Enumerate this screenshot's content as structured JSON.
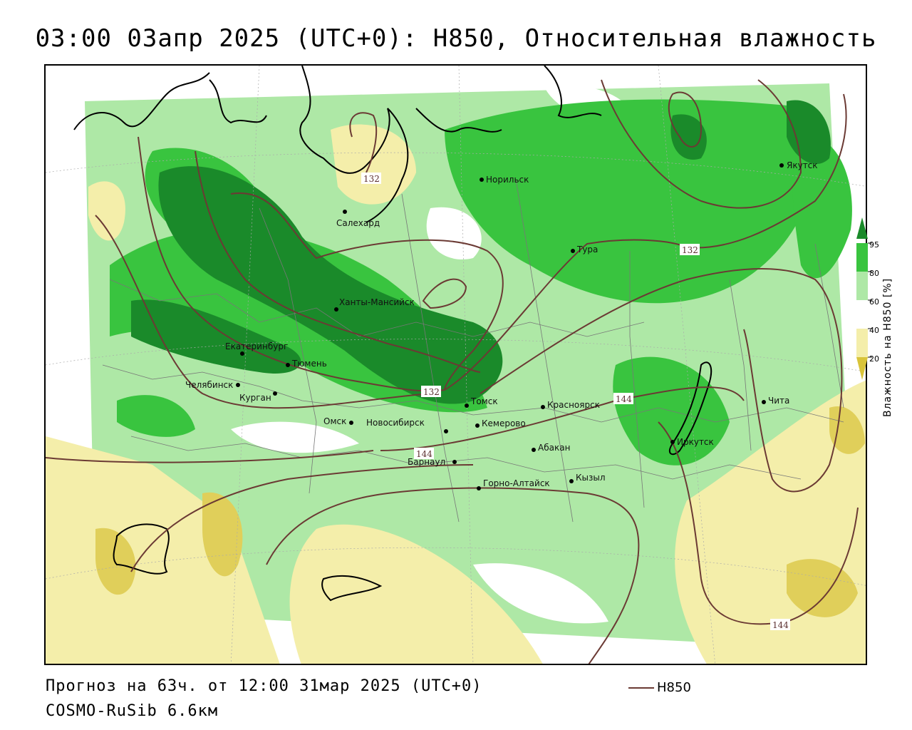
{
  "title": "03:00 03апр 2025 (UTC+0): H850, Относительная влажность",
  "footer": {
    "forecast": "Прогноз на 63ч. от 12:00 31мар 2025 (UTC+0)",
    "model": "COSMO-RuSib 6.6км",
    "legend_label": "H850"
  },
  "colorbar": {
    "title": "Влажность на H850 [%]",
    "ticks": [
      "95",
      "80",
      "60",
      "40",
      "20"
    ],
    "colors": {
      "c95": "#1a8a2a",
      "c80": "#39c43f",
      "c60": "#aee8a6",
      "c40": "#ffffff",
      "c20": "#f4eeaa",
      "c0": "#d9c43a"
    }
  },
  "contour_labels": [
    "132",
    "132",
    "132",
    "144",
    "144",
    "144"
  ],
  "cities": [
    {
      "name": "Норильск"
    },
    {
      "name": "Якутск"
    },
    {
      "name": "Салехард"
    },
    {
      "name": "Тура"
    },
    {
      "name": "Ханты-Мансийск"
    },
    {
      "name": "Екатеринбург"
    },
    {
      "name": "Тюмень"
    },
    {
      "name": "Челябинск"
    },
    {
      "name": "Курган"
    },
    {
      "name": "Омск"
    },
    {
      "name": "Новосибирск"
    },
    {
      "name": "Томск"
    },
    {
      "name": "Кемерово"
    },
    {
      "name": "Красноярск"
    },
    {
      "name": "Абакан"
    },
    {
      "name": "Барнаул"
    },
    {
      "name": "Горно-Алтайск"
    },
    {
      "name": "Кызыл"
    },
    {
      "name": "Иркутск"
    },
    {
      "name": "Чита"
    }
  ]
}
